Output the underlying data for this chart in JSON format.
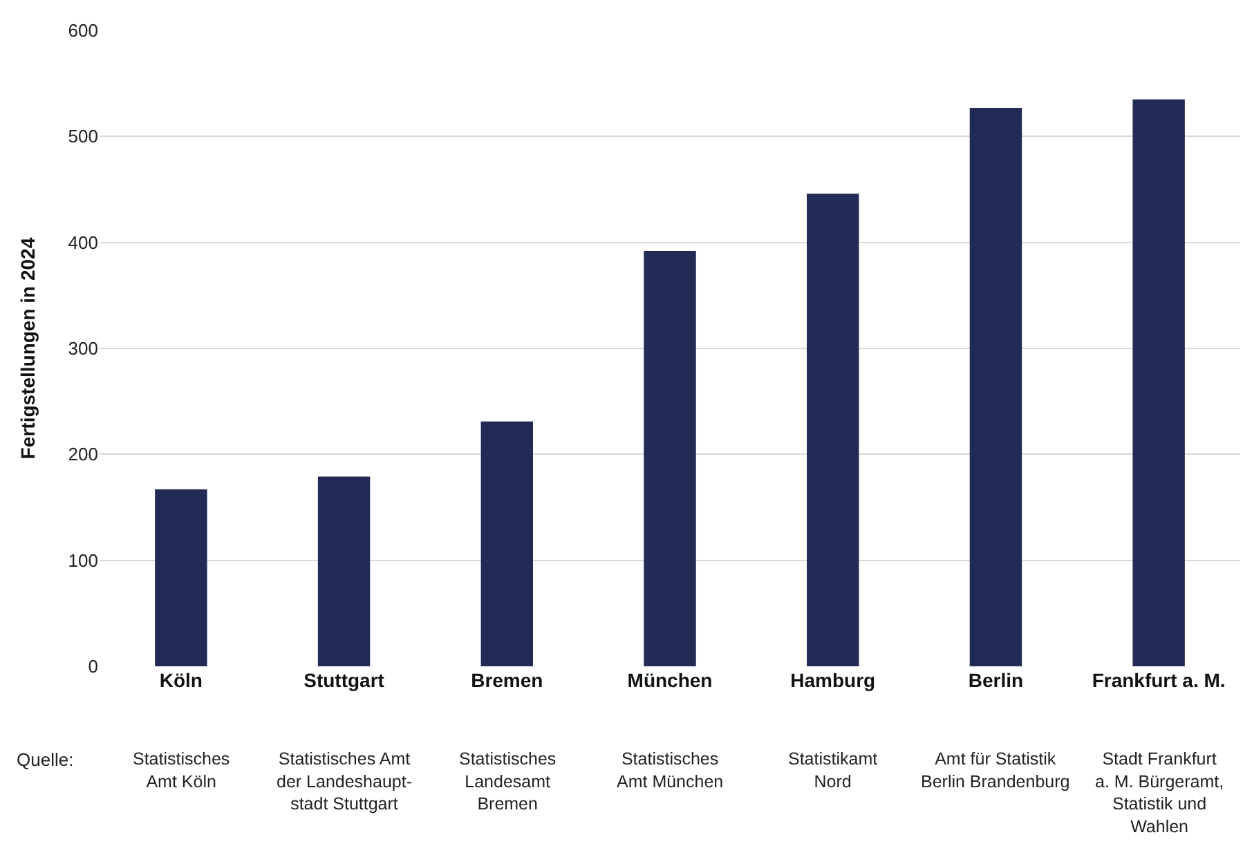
{
  "chart_data": {
    "type": "bar",
    "ylabel": "Fertigstellungen in 2024",
    "categories": [
      "Köln",
      "Stuttgart",
      "Bremen",
      "München",
      "Hamburg",
      "Berlin",
      "Frankfurt a. M."
    ],
    "values": [
      167,
      179,
      231,
      392,
      446,
      527,
      535
    ],
    "color": "#222b55",
    "ylim": [
      0,
      600
    ],
    "yticks": [
      0,
      100,
      200,
      300,
      400,
      500,
      600
    ],
    "grid": "y",
    "annotations": [
      "Quelle:",
      "Statistisches\nAmt Köln",
      "Statistisches Amt\nder Landeshaupt-\nstadt Stuttgart",
      "Statistisches\nLandesamt\nBremen",
      "Statistisches\nAmt München",
      "Statistikamt\nNord",
      "Amt für Statistik\nBerlin Brandenburg",
      "Stadt Frankfurt\na. M. Bürgeramt,\nStatistik und\nWahlen"
    ]
  }
}
